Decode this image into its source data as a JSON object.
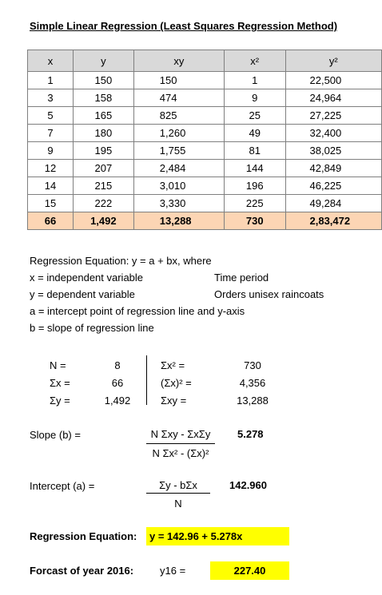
{
  "title": "Simple Linear Regression (Least Squares Regression Method)",
  "table": {
    "header": [
      "x",
      "y",
      "xy",
      "x²",
      "y²"
    ],
    "rows": [
      [
        "1",
        "150",
        "150",
        "1",
        "22,500"
      ],
      [
        "3",
        "158",
        "474",
        "9",
        "24,964"
      ],
      [
        "5",
        "165",
        "825",
        "25",
        "27,225"
      ],
      [
        "7",
        "180",
        "1,260",
        "49",
        "32,400"
      ],
      [
        "9",
        "195",
        "1,755",
        "81",
        "38,025"
      ],
      [
        "12",
        "207",
        "2,484",
        "144",
        "42,849"
      ],
      [
        "14",
        "215",
        "3,010",
        "196",
        "46,225"
      ],
      [
        "15",
        "222",
        "3,330",
        "225",
        "49,284"
      ]
    ],
    "total": [
      "66",
      "1,492",
      "13,288",
      "730",
      "2,83,472"
    ]
  },
  "notes": [
    {
      "text": "Regression Equation: y = a + bx,   where"
    },
    {
      "text": "x = independent variable",
      "detail": "Time period"
    },
    {
      "text": "y = dependent variable",
      "detail": "Orders unisex raincoats"
    },
    {
      "text": "a = intercept point of regression line and y-axis"
    },
    {
      "text": "b = slope of regression line"
    }
  ],
  "stats": {
    "left": [
      {
        "label": "N =",
        "value": "8"
      },
      {
        "label": "Σx =",
        "value": "66"
      },
      {
        "label": "Σy =",
        "value": "1,492"
      }
    ],
    "right": [
      {
        "label": "Σx² =",
        "value": "730"
      },
      {
        "label": "(Σx)² =",
        "value": "4,356"
      },
      {
        "label": "Σxy =",
        "value": "13,288"
      }
    ]
  },
  "slope": {
    "label": "Slope (b) =",
    "numerator": "N Σxy - ΣxΣy",
    "denominator": "N Σx² - (Σx)²",
    "value": "5.278"
  },
  "intercept": {
    "label": "Intercept (a) =",
    "numerator": "Σy - bΣx",
    "denominator": "N",
    "value": "142.960"
  },
  "equation": {
    "label": "Regression Equation:",
    "value": "y = 142.96 + 5.278x"
  },
  "forecast": {
    "label": "Forcast of year 2016:",
    "variable": "y16 =",
    "value": "227.40"
  }
}
